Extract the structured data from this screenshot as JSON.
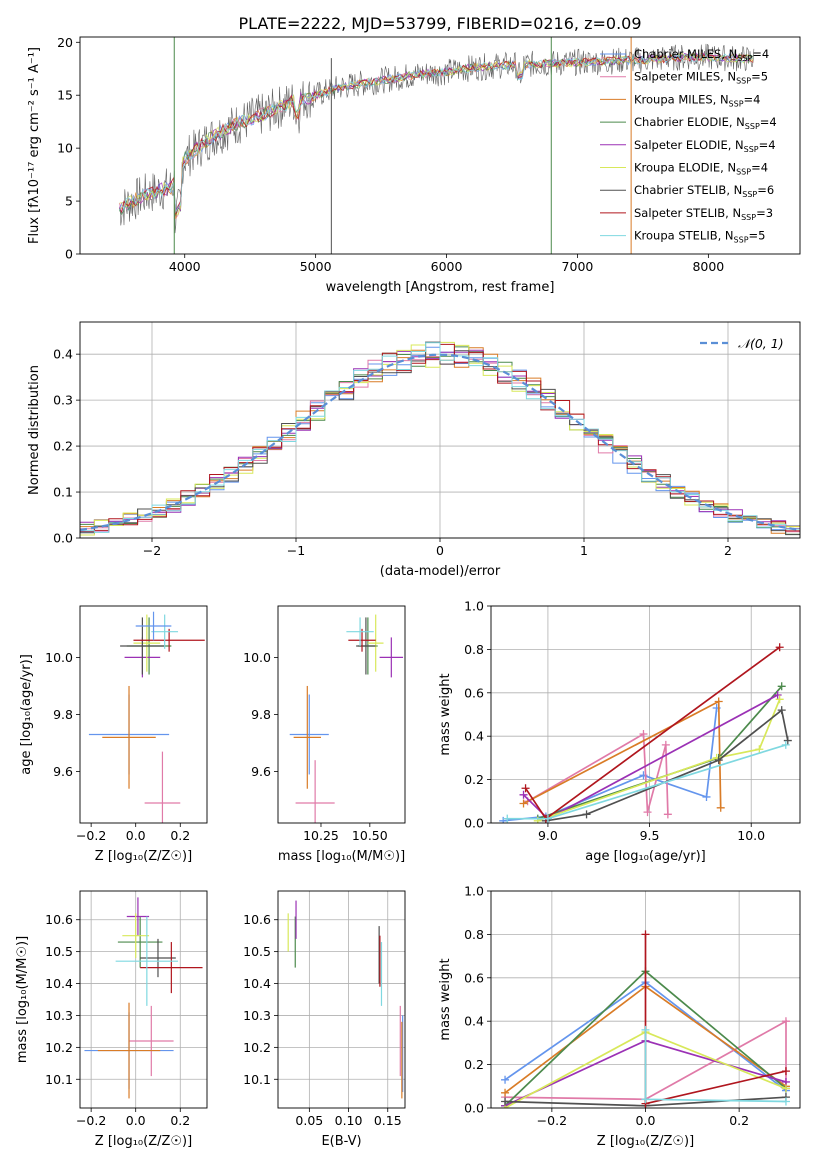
{
  "figure": {
    "title": "PLATE=2222, MJD=53799, FIBERID=0216, z=0.09",
    "colors": [
      "#6495ed",
      "#e07aa8",
      "#d97c27",
      "#4c8a4c",
      "#9b31b5",
      "#d8e85a",
      "#505050",
      "#b0161e",
      "#7fd8e0"
    ]
  },
  "chart_data": [
    {
      "id": "spectrum",
      "type": "line",
      "title": "PLATE=2222, MJD=53799, FIBERID=0216, z=0.09",
      "xlabel": "wavelength [Angstrom, rest frame]",
      "ylabel": "Flux [fλ10⁻¹⁷ erg cm⁻² s⁻¹ A⁻¹]",
      "xlim": [
        3200,
        8700
      ],
      "ylim": [
        0,
        20.5
      ],
      "xticks": [
        4000,
        5000,
        6000,
        7000,
        8000
      ],
      "yticks": [
        0,
        5,
        10,
        15,
        20
      ],
      "grid": false,
      "legend_position": "top-right",
      "continuum_x": [
        3500,
        3600,
        3700,
        3800,
        3900,
        4000,
        4100,
        4200,
        4400,
        4600,
        4800,
        5000,
        5200,
        5400,
        5600,
        5800,
        6000,
        6200,
        6400,
        6600,
        6800,
        7000,
        7200,
        7400,
        7600,
        7800,
        8000,
        8200,
        8350
      ],
      "continuum_y": [
        4.2,
        5.0,
        5.6,
        6.0,
        6.3,
        9.0,
        10.0,
        11.0,
        12.3,
        13.2,
        14.3,
        15.0,
        15.8,
        16.2,
        16.6,
        17.0,
        17.2,
        17.6,
        17.8,
        17.9,
        18.0,
        18.1,
        18.2,
        18.3,
        18.4,
        18.6,
        18.6,
        18.5,
        18.4
      ],
      "series": [
        {
          "name": "Chabrier MILES, N_SSP=4",
          "label_main": "Chabrier MILES, N",
          "label_sub": "SSP",
          "label_end": "=4"
        },
        {
          "name": "Salpeter MILES, N_SSP=5",
          "label_main": "Salpeter MILES, N",
          "label_sub": "SSP",
          "label_end": "=5"
        },
        {
          "name": "Kroupa MILES, N_SSP=4",
          "label_main": "Kroupa MILES, N",
          "label_sub": "SSP",
          "label_end": "=4"
        },
        {
          "name": "Chabrier ELODIE, N_SSP=4",
          "label_main": "Chabrier ELODIE, N",
          "label_sub": "SSP",
          "label_end": "=4"
        },
        {
          "name": "Salpeter ELODIE, N_SSP=4",
          "label_main": "Salpeter ELODIE, N",
          "label_sub": "SSP",
          "label_end": "=4"
        },
        {
          "name": "Kroupa ELODIE, N_SSP=4",
          "label_main": "Kroupa ELODIE, N",
          "label_sub": "SSP",
          "label_end": "=4"
        },
        {
          "name": "Chabrier STELIB, N_SSP=6",
          "label_main": "Chabrier STELIB, N",
          "label_sub": "SSP",
          "label_end": "=6"
        },
        {
          "name": "Salpeter STELIB, N_SSP=3",
          "label_main": "Salpeter STELIB, N",
          "label_sub": "SSP",
          "label_end": "=3"
        },
        {
          "name": "Kroupa STELIB, N_SSP=5",
          "label_main": "Kroupa STELIB, N",
          "label_sub": "SSP",
          "label_end": "=5"
        }
      ]
    },
    {
      "id": "residuals",
      "type": "bar",
      "xlabel": "(data-model)/error",
      "ylabel": "Normed distribution",
      "xlim": [
        -2.5,
        2.5
      ],
      "ylim": [
        0,
        0.47
      ],
      "xticks": [
        -2,
        -1,
        0,
        1,
        2
      ],
      "xticklabels": [
        "−2",
        "−1",
        "0",
        "1",
        "2"
      ],
      "yticks": [
        0.0,
        0.1,
        0.2,
        0.3,
        0.4
      ],
      "grid": true,
      "legend_position": "top-right",
      "reference_curve": {
        "name": "N(0,1)",
        "label": "𝒩(0, 1)",
        "mean": 0,
        "sigma": 1
      },
      "bin_width": 0.1
    },
    {
      "id": "age_vs_Z",
      "type": "scatter",
      "xlabel": "Z [log₁₀(Z/Z☉)]",
      "ylabel": "age  [log₁₀(age/yr)]",
      "xlim": [
        -0.25,
        0.32
      ],
      "ylim": [
        9.42,
        10.18
      ],
      "xticks": [
        -0.2,
        0.0,
        0.2
      ],
      "xticklabels": [
        "−0.2",
        "0.0",
        "0.2"
      ],
      "yticks": [
        9.6,
        9.8,
        10.0
      ],
      "grid": false,
      "points": [
        {
          "s": 0,
          "x": -0.03,
          "y": 9.73,
          "xerr": 0.18,
          "yerr": 0.14
        },
        {
          "s": 1,
          "x": 0.12,
          "y": 9.49,
          "xerr": 0.08,
          "yerr": 0.18
        },
        {
          "s": 2,
          "x": -0.03,
          "y": 9.72,
          "xerr": 0.12,
          "yerr": 0.18
        },
        {
          "s": 3,
          "x": 0.06,
          "y": 10.04,
          "xerr": 0.1,
          "yerr": 0.1
        },
        {
          "s": 4,
          "x": 0.03,
          "y": 10.0,
          "xerr": 0.08,
          "yerr": 0.07
        },
        {
          "s": 5,
          "x": 0.05,
          "y": 10.05,
          "xerr": 0.06,
          "yerr": 0.1
        },
        {
          "s": 6,
          "x": 0.03,
          "y": 10.04,
          "xerr": 0.1,
          "yerr": 0.1
        },
        {
          "s": 7,
          "x": 0.15,
          "y": 10.06,
          "xerr": 0.16,
          "yerr": 0.04
        },
        {
          "s": 8,
          "x": 0.13,
          "y": 10.09,
          "xerr": 0.06,
          "yerr": 0.06
        },
        {
          "s": 0,
          "x": 0.08,
          "y": 10.11,
          "xerr": 0.08,
          "yerr": 0.05
        }
      ]
    },
    {
      "id": "age_vs_mass",
      "type": "scatter",
      "xlabel": "mass [log₁₀(M/M☉)]",
      "ylabel": "",
      "xlim": [
        10.03,
        10.68
      ],
      "ylim": [
        9.42,
        10.18
      ],
      "xticks": [
        10.25,
        10.5
      ],
      "xticklabels": [
        "10.25",
        "10.50"
      ],
      "yticks": [
        9.6,
        9.8,
        10.0
      ],
      "grid": false,
      "points": [
        {
          "s": 0,
          "x": 10.19,
          "y": 9.73,
          "xerr": 0.1,
          "yerr": 0.14
        },
        {
          "s": 1,
          "x": 10.22,
          "y": 9.49,
          "xerr": 0.1,
          "yerr": 0.15
        },
        {
          "s": 2,
          "x": 10.18,
          "y": 9.72,
          "xerr": 0.07,
          "yerr": 0.18
        },
        {
          "s": 3,
          "x": 10.49,
          "y": 10.04,
          "xerr": 0.05,
          "yerr": 0.1
        },
        {
          "s": 4,
          "x": 10.61,
          "y": 10.0,
          "xerr": 0.06,
          "yerr": 0.07
        },
        {
          "s": 5,
          "x": 10.53,
          "y": 10.05,
          "xerr": 0.04,
          "yerr": 0.1
        },
        {
          "s": 6,
          "x": 10.48,
          "y": 10.04,
          "xerr": 0.05,
          "yerr": 0.1
        },
        {
          "s": 7,
          "x": 10.46,
          "y": 10.06,
          "xerr": 0.07,
          "yerr": 0.04
        },
        {
          "s": 8,
          "x": 10.45,
          "y": 10.09,
          "xerr": 0.07,
          "yerr": 0.05
        }
      ]
    },
    {
      "id": "weight_vs_age",
      "type": "line",
      "xlabel": "age  [log₁₀(age/yr)]",
      "ylabel": "mass weight",
      "xlim": [
        8.72,
        10.24
      ],
      "ylim": [
        0,
        1.0
      ],
      "xticks": [
        9.0,
        9.5,
        10.0
      ],
      "yticks": [
        0.0,
        0.2,
        0.4,
        0.6,
        0.8,
        1.0
      ],
      "grid": true,
      "series": [
        {
          "s": 0,
          "x": [
            8.78,
            8.99,
            9.47,
            9.78,
            9.83
          ],
          "y": [
            0.01,
            0.03,
            0.22,
            0.12,
            0.53
          ]
        },
        {
          "s": 1,
          "x": [
            8.9,
            9.47,
            9.49,
            9.58,
            9.59
          ],
          "y": [
            0.1,
            0.41,
            0.05,
            0.36,
            0.04
          ]
        },
        {
          "s": 2,
          "x": [
            8.88,
            9.84,
            9.85
          ],
          "y": [
            0.09,
            0.56,
            0.07
          ]
        },
        {
          "s": 3,
          "x": [
            8.95,
            9.84,
            10.15
          ],
          "y": [
            0.02,
            0.3,
            0.63
          ]
        },
        {
          "s": 4,
          "x": [
            8.88,
            9.0,
            10.13
          ],
          "y": [
            0.13,
            0.02,
            0.59
          ]
        },
        {
          "s": 5,
          "x": [
            8.95,
            9.83,
            10.04,
            10.14
          ],
          "y": [
            0.01,
            0.3,
            0.34,
            0.57
          ]
        },
        {
          "s": 6,
          "x": [
            8.99,
            9.19,
            9.84,
            10.15,
            10.18
          ],
          "y": [
            0.01,
            0.04,
            0.29,
            0.52,
            0.38
          ]
        },
        {
          "s": 7,
          "x": [
            8.89,
            8.99,
            10.14
          ],
          "y": [
            0.16,
            0.02,
            0.81
          ]
        },
        {
          "s": 8,
          "x": [
            8.8,
            9.0,
            10.17
          ],
          "y": [
            0.02,
            0.02,
            0.36
          ]
        }
      ]
    },
    {
      "id": "mass_vs_Z",
      "type": "scatter",
      "xlabel": "Z [log₁₀(Z/Z☉)]",
      "ylabel": "mass [log₁₀(M/M☉)]",
      "xlim": [
        -0.25,
        0.32
      ],
      "ylim": [
        10.01,
        10.69
      ],
      "xticks": [
        -0.2,
        0.0,
        0.2
      ],
      "xticklabels": [
        "−0.2",
        "0.0",
        "0.2"
      ],
      "yticks": [
        10.1,
        10.2,
        10.3,
        10.4,
        10.5,
        10.6
      ],
      "grid": true,
      "points": [
        {
          "s": 0,
          "x": -0.03,
          "y": 10.19,
          "xerr": 0.2,
          "yerr": 0.12
        },
        {
          "s": 1,
          "x": 0.07,
          "y": 10.22,
          "xerr": 0.1,
          "yerr": 0.11
        },
        {
          "s": 2,
          "x": -0.03,
          "y": 10.19,
          "xerr": 0.14,
          "yerr": 0.15
        },
        {
          "s": 3,
          "x": 0.02,
          "y": 10.53,
          "xerr": 0.1,
          "yerr": 0.08
        },
        {
          "s": 4,
          "x": 0.01,
          "y": 10.61,
          "xerr": 0.05,
          "yerr": 0.06
        },
        {
          "s": 5,
          "x": 0.0,
          "y": 10.55,
          "xerr": 0.06,
          "yerr": 0.07
        },
        {
          "s": 6,
          "x": 0.1,
          "y": 10.48,
          "xerr": 0.08,
          "yerr": 0.06
        },
        {
          "s": 7,
          "x": 0.16,
          "y": 10.45,
          "xerr": 0.14,
          "yerr": 0.08
        },
        {
          "s": 8,
          "x": 0.05,
          "y": 10.47,
          "xerr": 0.14,
          "yerr": 0.14
        }
      ]
    },
    {
      "id": "mass_vs_ebv",
      "type": "scatter",
      "xlabel": "E(B-V)",
      "ylabel": "",
      "xlim": [
        0.01,
        0.172
      ],
      "ylim": [
        10.01,
        10.69
      ],
      "xticks": [
        0.05,
        0.1,
        0.15
      ],
      "xticklabels": [
        "0.05",
        "0.10",
        "0.15"
      ],
      "yticks": [
        10.1,
        10.2,
        10.3,
        10.4,
        10.5,
        10.6
      ],
      "grid": true,
      "points": [
        {
          "s": 0,
          "x": 0.169,
          "y": 10.18,
          "xerr": 0,
          "yerr": 0.12
        },
        {
          "s": 1,
          "x": 0.166,
          "y": 10.22,
          "xerr": 0,
          "yerr": 0.11
        },
        {
          "s": 2,
          "x": 0.168,
          "y": 10.16,
          "xerr": 0,
          "yerr": 0.12
        },
        {
          "s": 3,
          "x": 0.032,
          "y": 10.53,
          "xerr": 0,
          "yerr": 0.08
        },
        {
          "s": 4,
          "x": 0.033,
          "y": 10.6,
          "xerr": 0,
          "yerr": 0.06
        },
        {
          "s": 5,
          "x": 0.023,
          "y": 10.56,
          "xerr": 0,
          "yerr": 0.06
        },
        {
          "s": 6,
          "x": 0.139,
          "y": 10.49,
          "xerr": 0,
          "yerr": 0.09
        },
        {
          "s": 7,
          "x": 0.14,
          "y": 10.47,
          "xerr": 0,
          "yerr": 0.08
        },
        {
          "s": 8,
          "x": 0.142,
          "y": 10.43,
          "xerr": 0,
          "yerr": 0.1
        }
      ]
    },
    {
      "id": "weight_vs_Z",
      "type": "line",
      "xlabel": "Z [log₁₀(Z/Z☉)]",
      "ylabel": "mass weight",
      "xlim": [
        -0.33,
        0.33
      ],
      "ylim": [
        0,
        1.0
      ],
      "xticks": [
        -0.2,
        0.0,
        0.2
      ],
      "xticklabels": [
        "−0.2",
        "0.0",
        "0.2"
      ],
      "yticks": [
        0.0,
        0.2,
        0.4,
        0.6,
        0.8,
        1.0
      ],
      "grid": true,
      "series": [
        {
          "s": 0,
          "x": [
            -0.3,
            0.0,
            0.3
          ],
          "y": [
            0.13,
            0.58,
            0.08
          ]
        },
        {
          "s": 1,
          "x": [
            -0.3,
            0.0,
            0.3,
            0.3
          ],
          "y": [
            0.05,
            0.04,
            0.4,
            0.09
          ]
        },
        {
          "s": 2,
          "x": [
            -0.3,
            0.0,
            0.3
          ],
          "y": [
            0.07,
            0.56,
            0.1
          ]
        },
        {
          "s": 3,
          "x": [
            -0.3,
            0.0,
            0.3
          ],
          "y": [
            0.01,
            0.63,
            0.09
          ]
        },
        {
          "s": 4,
          "x": [
            -0.3,
            0.0,
            0.3
          ],
          "y": [
            0.01,
            0.31,
            0.12
          ]
        },
        {
          "s": 5,
          "x": [
            -0.3,
            0.0,
            0.3
          ],
          "y": [
            0.0,
            0.35,
            0.09
          ]
        },
        {
          "s": 6,
          "x": [
            -0.3,
            0.0,
            0.3
          ],
          "y": [
            0.03,
            0.01,
            0.05
          ]
        },
        {
          "s": 7,
          "x": [
            0.0,
            0.0,
            0.3
          ],
          "y": [
            0.8,
            0.02,
            0.17
          ]
        },
        {
          "s": 8,
          "x": [
            0.0,
            0.0,
            0.3
          ],
          "y": [
            0.36,
            0.04,
            0.03
          ]
        }
      ]
    }
  ]
}
